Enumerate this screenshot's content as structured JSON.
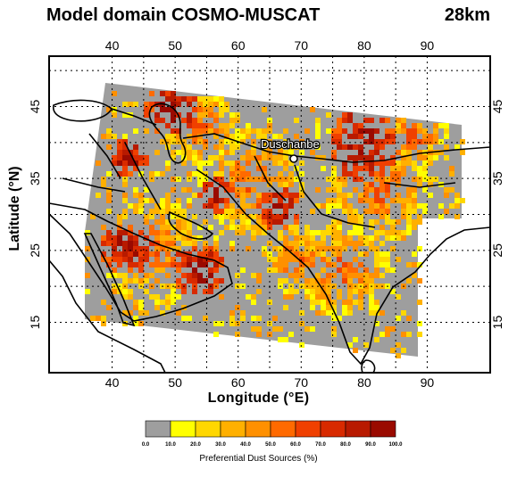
{
  "header": {
    "title": "Model domain COSMO-MUSCAT",
    "resolution": "28km"
  },
  "map": {
    "xlabel": "Longitude (°E)",
    "ylabel": "Latitude (°N)",
    "lon_ticks": [
      "40",
      "50",
      "60",
      "70",
      "80",
      "90"
    ],
    "lat_ticks": [
      "45",
      "35",
      "25",
      "15"
    ],
    "city_label": "Duschanbe",
    "lon_range": [
      30,
      100
    ],
    "lat_range": [
      8,
      52
    ],
    "colors": {
      "background_gray": "#9e9e9e",
      "coastline": "#000000",
      "grid": "#000000"
    }
  },
  "colorbar": {
    "title": "Preferential Dust Sources (%)",
    "tick_labels": [
      "0.0",
      "10.0",
      "20.0",
      "30.0",
      "40.0",
      "50.0",
      "60.0",
      "70.0",
      "80.0",
      "90.0",
      "100.0"
    ],
    "colors": [
      "#9e9e9e",
      "#ffff00",
      "#ffd700",
      "#ffb000",
      "#ff9000",
      "#ff6a00",
      "#f04000",
      "#d82a00",
      "#b81a00",
      "#9a0a00"
    ]
  }
}
